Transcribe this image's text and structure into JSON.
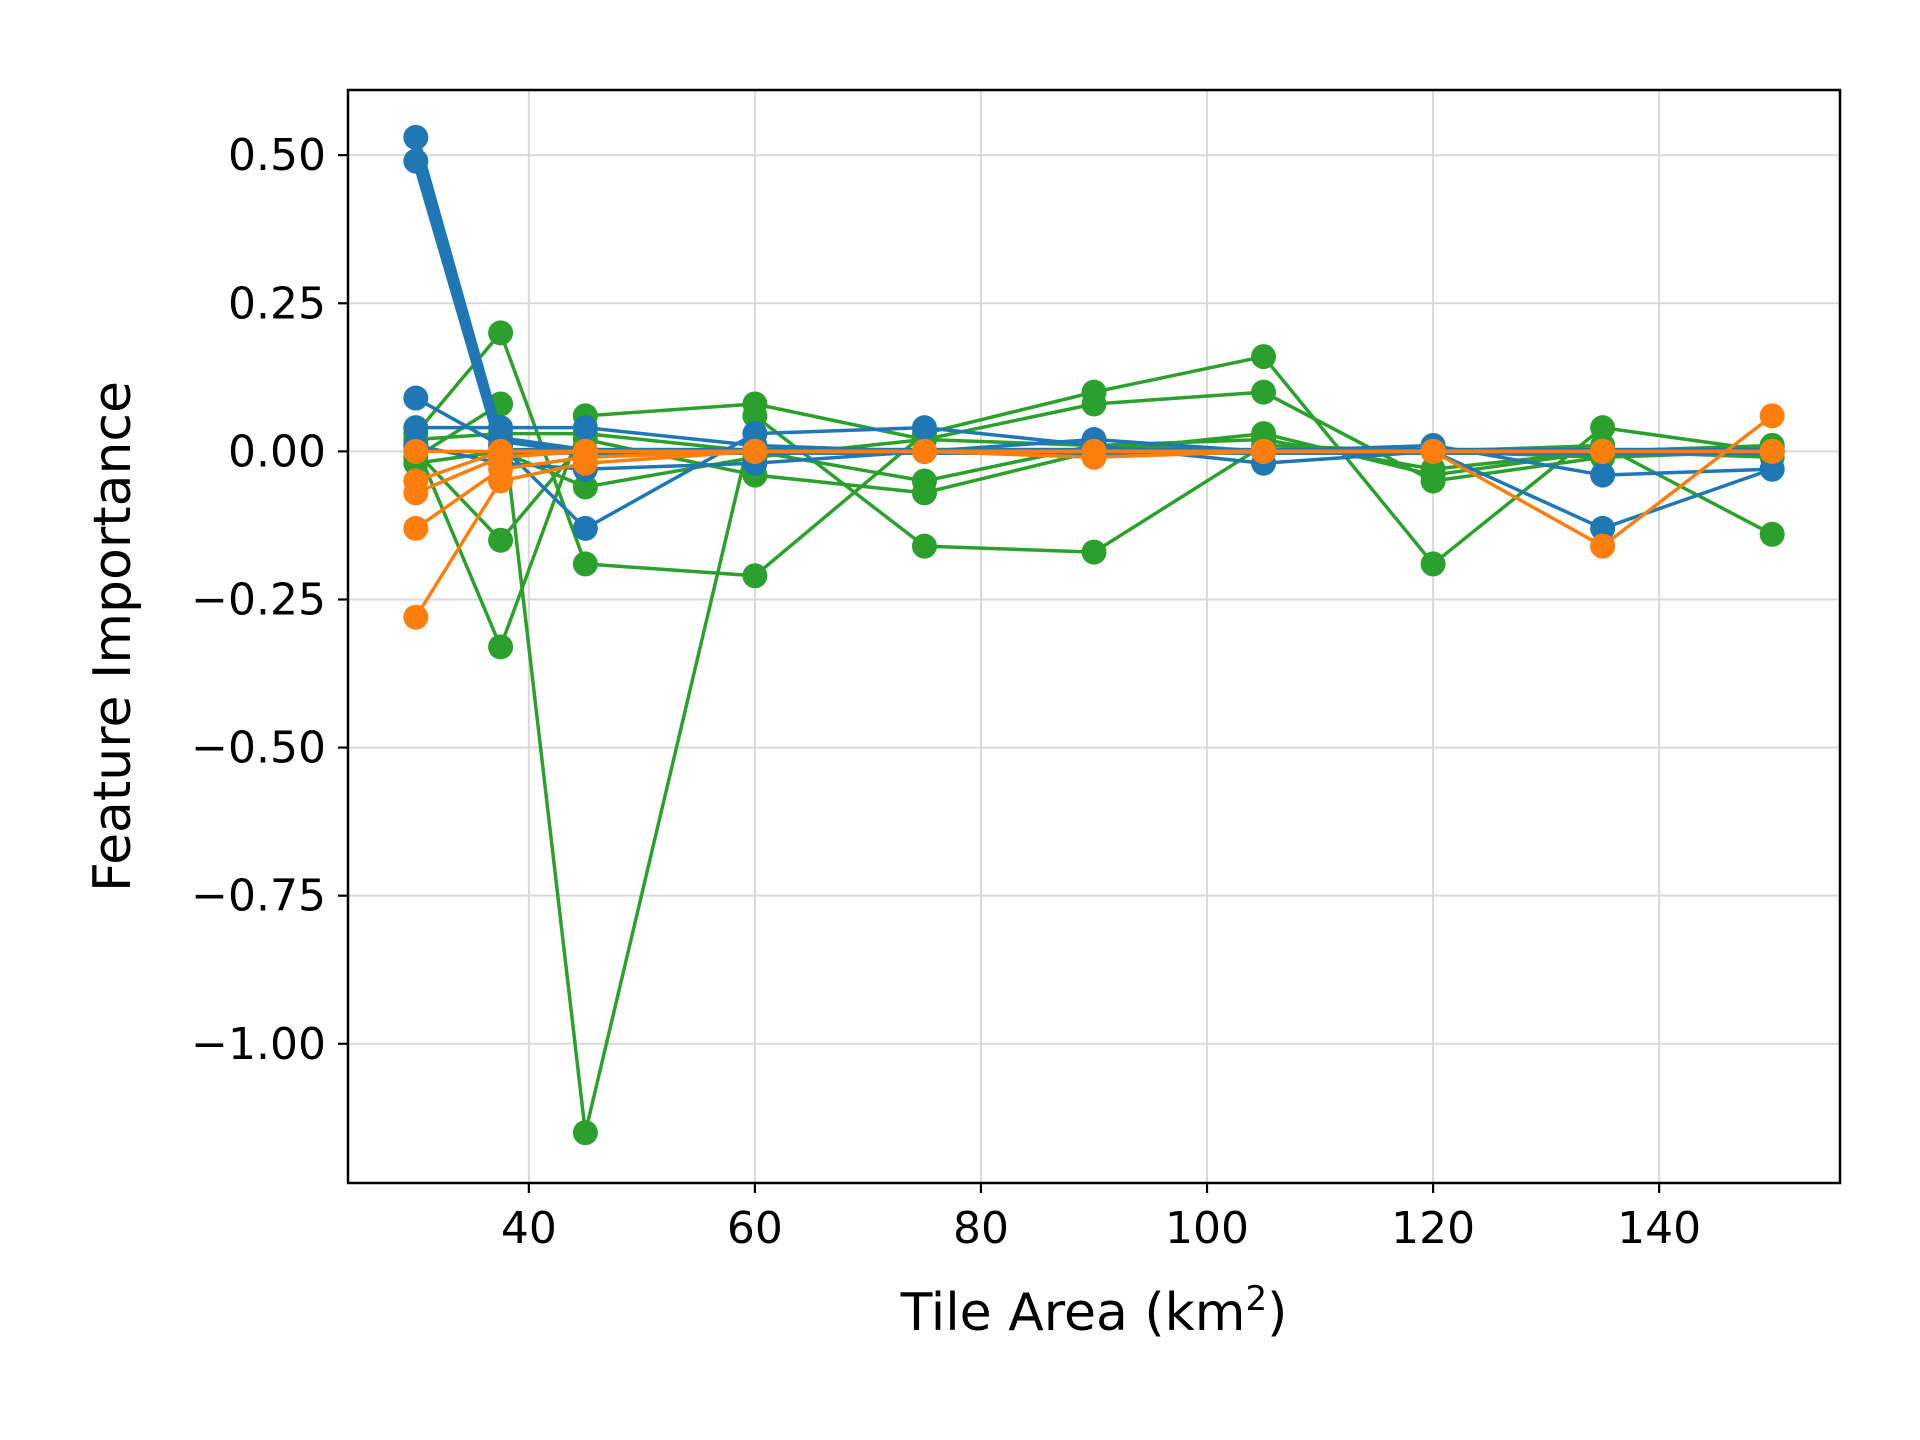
{
  "chart_data": {
    "type": "line",
    "xlabel_main": "Tile Area (km",
    "xlabel_sup": "2",
    "xlabel_end": ")",
    "ylabel": "Feature Importance",
    "xlim": [
      24,
      156
    ],
    "ylim": [
      -1.235,
      0.61
    ],
    "xticks": [
      40,
      60,
      80,
      100,
      120,
      140
    ],
    "xtick_labels": [
      "40",
      "60",
      "80",
      "100",
      "120",
      "140"
    ],
    "yticks": [
      0.5,
      0.25,
      0.0,
      -0.25,
      -0.5,
      -0.75,
      -1.0
    ],
    "ytick_labels": [
      "0.50",
      "0.25",
      "0.00",
      "−0.25",
      "−0.50",
      "−0.75",
      "−1.00"
    ],
    "grid": true,
    "colors": {
      "blue": "#1f77b4",
      "green": "#2ca02c",
      "orange": "#ff7f0e"
    },
    "x": [
      30,
      37.5,
      45,
      60,
      75,
      90,
      105,
      120,
      135,
      150
    ],
    "series": [
      {
        "color": "green",
        "values": [
          0.03,
          0.2,
          -0.19,
          -0.21,
          0.03,
          0.1,
          0.16,
          -0.19,
          0.04,
          0.0
        ]
      },
      {
        "color": "green",
        "values": [
          0.01,
          -0.33,
          0.06,
          0.08,
          0.02,
          0.08,
          0.1,
          -0.05,
          -0.01,
          0.01
        ]
      },
      {
        "color": "green",
        "values": [
          -0.01,
          0.08,
          -1.15,
          0.06,
          -0.16,
          -0.17,
          0.01,
          0.0,
          0.01,
          -0.14
        ]
      },
      {
        "color": "green",
        "values": [
          0.0,
          -0.15,
          0.02,
          -0.04,
          -0.07,
          0.0,
          0.03,
          -0.04,
          0.0,
          0.01
        ]
      },
      {
        "color": "green",
        "values": [
          -0.02,
          0.0,
          -0.06,
          -0.01,
          0.02,
          0.01,
          0.0,
          0.0,
          -0.01,
          0.0
        ]
      },
      {
        "color": "green",
        "values": [
          0.02,
          0.03,
          0.03,
          0.0,
          -0.05,
          0.01,
          0.02,
          -0.03,
          0.0,
          -0.01
        ]
      },
      {
        "color": "blue",
        "values": [
          0.53,
          0.02,
          0.0,
          0.0,
          0.0,
          0.0,
          0.0,
          0.0,
          0.0,
          0.0
        ]
      },
      {
        "color": "blue",
        "values": [
          0.49,
          0.0,
          0.0,
          0.0,
          0.0,
          0.0,
          0.0,
          0.0,
          0.0,
          0.0
        ]
      },
      {
        "color": "blue",
        "values": [
          0.09,
          0.01,
          -0.13,
          0.03,
          0.04,
          0.01,
          -0.02,
          0.0,
          -0.13,
          -0.03
        ]
      },
      {
        "color": "blue",
        "values": [
          0.04,
          0.04,
          0.04,
          0.01,
          0.0,
          0.02,
          0.0,
          0.01,
          -0.04,
          -0.03
        ]
      },
      {
        "color": "blue",
        "values": [
          0.01,
          -0.02,
          -0.03,
          -0.02,
          0.0,
          0.0,
          0.0,
          0.0,
          0.0,
          0.0
        ]
      },
      {
        "color": "orange",
        "values": [
          -0.28,
          -0.05,
          -0.02,
          0.0,
          0.0,
          -0.01,
          0.0,
          0.0,
          -0.16,
          0.06
        ]
      },
      {
        "color": "orange",
        "values": [
          -0.13,
          -0.03,
          -0.01,
          0.0,
          0.0,
          0.0,
          0.0,
          0.0,
          0.0,
          0.0
        ]
      },
      {
        "color": "orange",
        "values": [
          -0.07,
          -0.01,
          0.0,
          0.0,
          0.0,
          0.0,
          0.0,
          0.0,
          0.0,
          0.0
        ]
      },
      {
        "color": "orange",
        "values": [
          -0.05,
          0.0,
          0.0,
          0.0,
          0.0,
          0.0,
          0.0,
          0.0,
          0.0,
          0.0
        ]
      },
      {
        "color": "orange",
        "values": [
          0.0,
          0.0,
          0.0,
          0.0,
          0.0,
          0.0,
          0.0,
          0.0,
          0.0,
          0.0
        ]
      }
    ]
  }
}
